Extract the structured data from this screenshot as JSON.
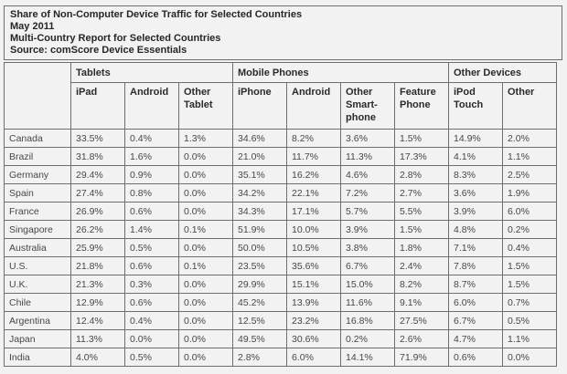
{
  "header": {
    "title": "Share of Non-Computer Device Traffic for Selected Countries",
    "period": "May 2011",
    "report_name": "Multi-Country Report for Selected Countries",
    "source": "Source: comScore Device Essentials"
  },
  "chart_data": {
    "type": "table",
    "title": "Share of Non-Computer Device Traffic for Selected Countries",
    "period": "May 2011",
    "report_name": "Multi-Country Report for Selected Countries",
    "source": "Source: comScore Device Essentials",
    "column_groups": [
      {
        "label": "Tablets",
        "span": 3
      },
      {
        "label": "Mobile Phones",
        "span": 4
      },
      {
        "label": "Other Devices",
        "span": 2
      }
    ],
    "columns": [
      "iPad",
      "Android",
      "Other Tablet",
      "iPhone",
      "Android",
      "Other Smart-phone",
      "Feature Phone",
      "iPod Touch",
      "Other"
    ],
    "column_display": [
      "iPad",
      "Android",
      "Other\nTablet",
      "iPhone",
      "Android",
      "Other\nSmart-\nphone",
      "Feature\nPhone",
      "iPod\nTouch",
      "Other"
    ],
    "row_header": "",
    "rows": [
      {
        "country": "Canada",
        "values": [
          "33.5%",
          "0.4%",
          "1.3%",
          "34.6%",
          "8.2%",
          "3.6%",
          "1.5%",
          "14.9%",
          "2.0%"
        ]
      },
      {
        "country": "Brazil",
        "values": [
          "31.8%",
          "1.6%",
          "0.0%",
          "21.0%",
          "11.7%",
          "11.3%",
          "17.3%",
          "4.1%",
          "1.1%"
        ]
      },
      {
        "country": "Germany",
        "values": [
          "29.4%",
          "0.9%",
          "0.0%",
          "35.1%",
          "16.2%",
          "4.6%",
          "2.8%",
          "8.3%",
          "2.5%"
        ]
      },
      {
        "country": "Spain",
        "values": [
          "27.4%",
          "0.8%",
          "0.0%",
          "34.2%",
          "22.1%",
          "7.2%",
          "2.7%",
          "3.6%",
          "1.9%"
        ]
      },
      {
        "country": "France",
        "values": [
          "26.9%",
          "0.6%",
          "0.0%",
          "34.3%",
          "17.1%",
          "5.7%",
          "5.5%",
          "3.9%",
          "6.0%"
        ]
      },
      {
        "country": "Singapore",
        "values": [
          "26.2%",
          "1.4%",
          "0.1%",
          "51.9%",
          "10.0%",
          "3.9%",
          "1.5%",
          "4.8%",
          "0.2%"
        ]
      },
      {
        "country": "Australia",
        "values": [
          "25.9%",
          "0.5%",
          "0.0%",
          "50.0%",
          "10.5%",
          "3.8%",
          "1.8%",
          "7.1%",
          "0.4%"
        ]
      },
      {
        "country": "U.S.",
        "values": [
          "21.8%",
          "0.6%",
          "0.1%",
          "23.5%",
          "35.6%",
          "6.7%",
          "2.4%",
          "7.8%",
          "1.5%"
        ]
      },
      {
        "country": "U.K.",
        "values": [
          "21.3%",
          "0.3%",
          "0.0%",
          "29.9%",
          "15.1%",
          "15.0%",
          "8.2%",
          "8.7%",
          "1.5%"
        ]
      },
      {
        "country": "Chile",
        "values": [
          "12.9%",
          "0.6%",
          "0.0%",
          "45.2%",
          "13.9%",
          "11.6%",
          "9.1%",
          "6.0%",
          "0.7%"
        ]
      },
      {
        "country": "Argentina",
        "values": [
          "12.4%",
          "0.4%",
          "0.0%",
          "12.5%",
          "23.2%",
          "16.8%",
          "27.5%",
          "6.7%",
          "0.5%"
        ]
      },
      {
        "country": "Japan",
        "values": [
          "11.3%",
          "0.0%",
          "0.0%",
          "49.5%",
          "30.6%",
          "0.2%",
          "2.6%",
          "4.7%",
          "1.1%"
        ]
      },
      {
        "country": "India",
        "values": [
          "4.0%",
          "0.5%",
          "0.0%",
          "2.8%",
          "6.0%",
          "14.1%",
          "71.9%",
          "0.6%",
          "0.0%"
        ]
      }
    ],
    "colors": {
      "border": "#6e6e70",
      "title_text": "#262626",
      "header_text": "#2b2b2b",
      "data_text": "#474747",
      "background": "#f2f2f3"
    }
  }
}
